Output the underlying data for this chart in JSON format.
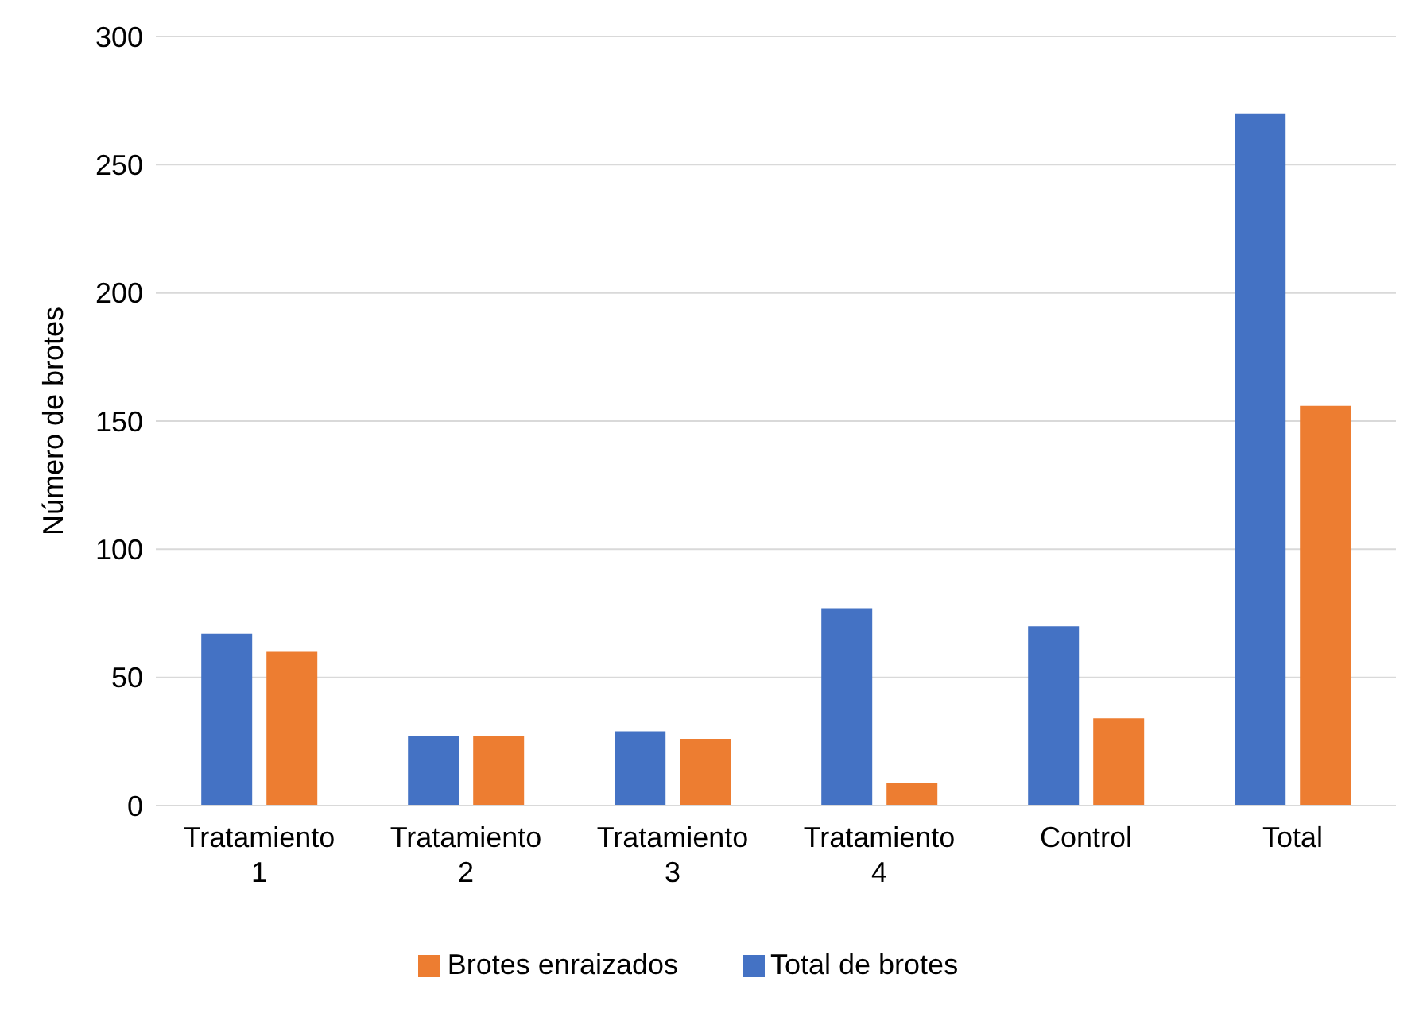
{
  "chart_data": {
    "type": "bar",
    "ylabel": "Número de brotes",
    "categories": [
      "Tratamiento 1",
      "Tratamiento 2",
      "Tratamiento 3",
      "Tratamiento 4",
      "Control",
      "Total"
    ],
    "series": [
      {
        "name": "Total de brotes",
        "color": "#4472c4",
        "values": [
          67,
          27,
          29,
          77,
          70,
          270
        ]
      },
      {
        "name": "Brotes enraizados",
        "color": "#ed7d31",
        "values": [
          60,
          27,
          26,
          9,
          34,
          156
        ]
      }
    ],
    "ylim": [
      0,
      300
    ],
    "yticks": [
      0,
      50,
      100,
      150,
      200,
      250,
      300
    ],
    "grid": "y",
    "legend": "bottom"
  }
}
